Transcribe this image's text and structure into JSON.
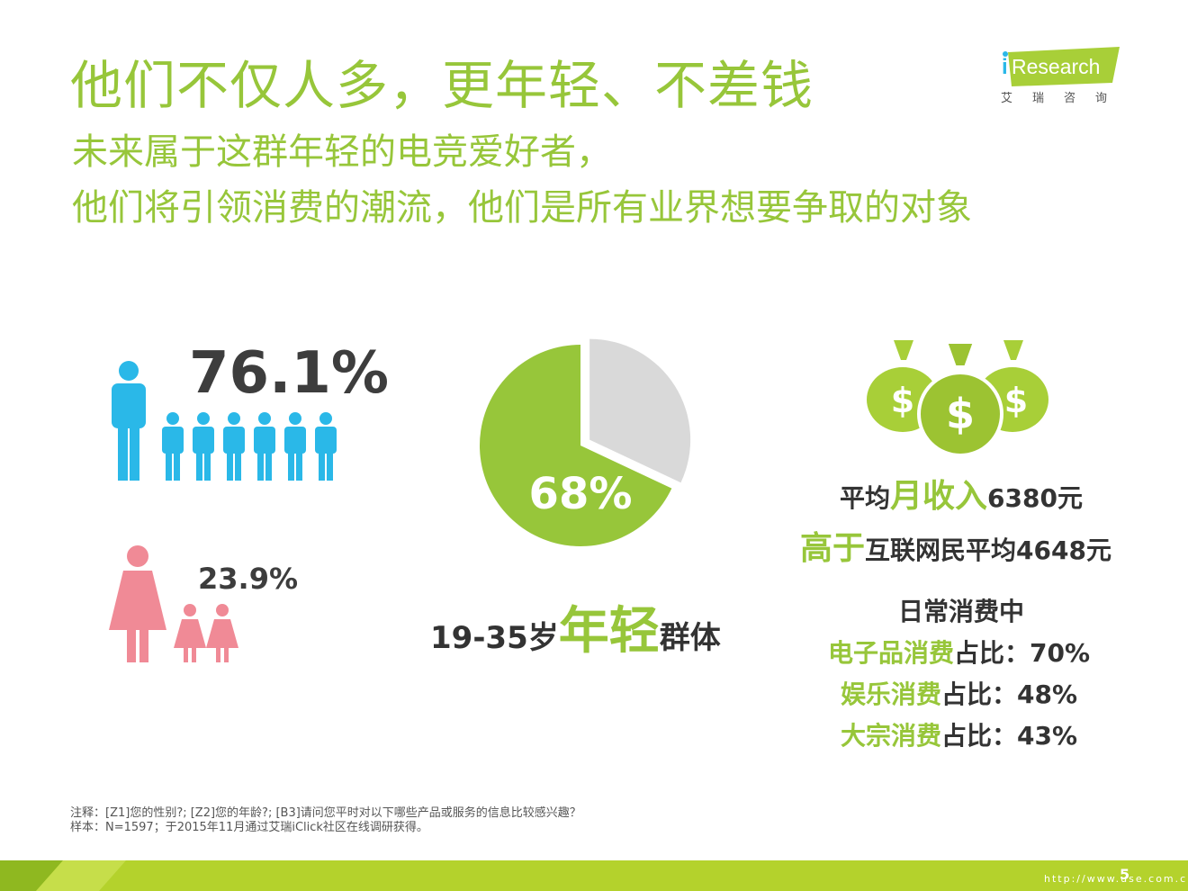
{
  "title": "他们不仅人多，更年轻、不差钱",
  "subtitle_line1": "未来属于这群年轻的电竞爱好者，",
  "subtitle_line2": "他们将引领消费的潮流，他们是所有业界想要争取的对象",
  "logo": {
    "brand_i": "i",
    "brand_rest": "Research",
    "cn": "艾瑞咨询"
  },
  "gender": {
    "male_pct": "76.1%",
    "female_pct": "23.9%"
  },
  "age": {
    "prefix": "19-35岁",
    "highlight": "年轻",
    "suffix": "群体"
  },
  "income": {
    "line1_a": "平均",
    "line1_b": "月收入",
    "line1_c": "6380元",
    "line2_a": "高于",
    "line2_b": "互联网民平均4648元"
  },
  "consumption": {
    "header": "日常消费中",
    "items": [
      {
        "green": "电子品消费",
        "rest": "占比：70%"
      },
      {
        "green": "娱乐消费",
        "rest": "占比：48%"
      },
      {
        "green": "大宗消费",
        "rest": "占比：43%"
      }
    ]
  },
  "notes": {
    "line1": "注释：[Z1]您的性别?; [Z2]您的年龄?; [B3]请问您平时对以下哪些产品或服务的信息比较感兴趣？",
    "line2": "样本：N=1597；于2015年11月通过艾瑞iClick社区在线调研获得。"
  },
  "page_number": "5",
  "watermark_url": "http://www.use.com.cn",
  "colors": {
    "accent_green": "#97c63a",
    "male_blue": "#2ab8e8",
    "female_pink": "#f08a96",
    "pie_gray": "#d9d9d9",
    "text_dark": "#333333"
  },
  "chart_data": {
    "type": "pie",
    "title": "",
    "categories": [
      "19-35岁",
      ""
    ],
    "values": [
      68,
      32
    ],
    "data_labels": [
      "68%",
      ""
    ],
    "colors": [
      "#97c63a",
      "#d9d9d9"
    ]
  },
  "icons": [
    "male-person-icon",
    "female-person-icon",
    "money-bag-icon",
    "ireesearch-logo"
  ]
}
